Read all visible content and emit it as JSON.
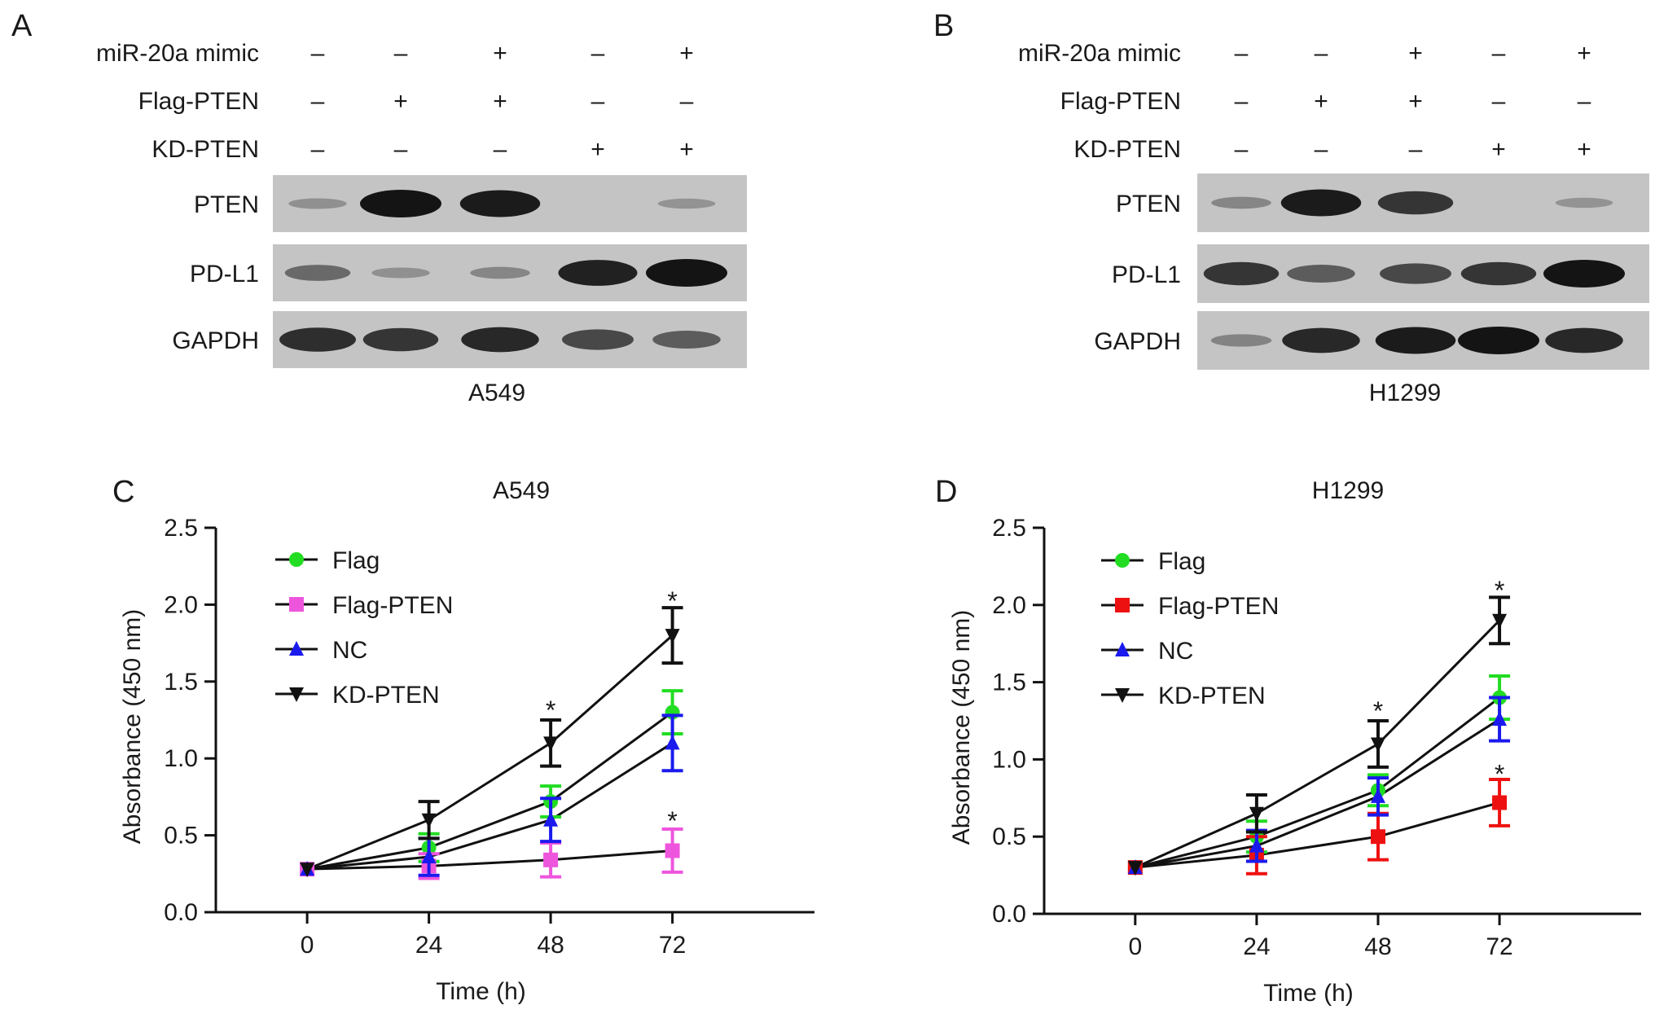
{
  "blots": [
    {
      "panel_label": "A",
      "cell_line": "A549",
      "conditions": [
        {
          "label": "miR-20a mimic",
          "lanes": [
            "–",
            "–",
            "+",
            "–",
            "+"
          ]
        },
        {
          "label": "Flag-PTEN",
          "lanes": [
            "–",
            "+",
            "+",
            "–",
            "–"
          ]
        },
        {
          "label": "KD-PTEN",
          "lanes": [
            "–",
            "–",
            "–",
            "+",
            "+"
          ]
        }
      ],
      "bands": [
        {
          "label": "PTEN",
          "intensity": [
            0.05,
            1.0,
            0.95,
            0.0,
            0.02
          ]
        },
        {
          "label": "PD-L1",
          "intensity": [
            0.35,
            0.05,
            0.12,
            0.9,
            1.0
          ]
        },
        {
          "label": "GAPDH",
          "intensity": [
            0.8,
            0.75,
            0.85,
            0.6,
            0.45
          ]
        }
      ]
    },
    {
      "panel_label": "B",
      "cell_line": "H1299",
      "conditions": [
        {
          "label": "miR-20a mimic",
          "lanes": [
            "–",
            "–",
            "+",
            "–",
            "+"
          ]
        },
        {
          "label": "Flag-PTEN",
          "lanes": [
            "–",
            "+",
            "+",
            "–",
            "–"
          ]
        },
        {
          "label": "KD-PTEN",
          "lanes": [
            "–",
            "–",
            "–",
            "+",
            "+"
          ]
        }
      ],
      "bands": [
        {
          "label": "PTEN",
          "intensity": [
            0.12,
            0.95,
            0.75,
            0.0,
            0.02
          ]
        },
        {
          "label": "PD-L1",
          "intensity": [
            0.75,
            0.45,
            0.6,
            0.75,
            1.0
          ]
        },
        {
          "label": "GAPDH",
          "intensity": [
            0.15,
            0.85,
            0.95,
            1.0,
            0.85
          ]
        }
      ]
    }
  ],
  "chart_data": [
    {
      "panel_label": "C",
      "type": "line",
      "title": "A549",
      "xlabel": "Time (h)",
      "ylabel": "Absorbance (450 nm)",
      "x": [
        0,
        24,
        48,
        72
      ],
      "x_ticks": [
        "0",
        "24",
        "48",
        "72"
      ],
      "ylim": [
        0,
        2.5
      ],
      "y_ticks": [
        "0.0",
        "0.5",
        "1.0",
        "1.5",
        "2.0",
        "2.5"
      ],
      "grid": false,
      "legend_position": "top-left",
      "significance": [
        {
          "x": 48,
          "y": 1.33,
          "text": "*"
        },
        {
          "x": 72,
          "y": 2.04,
          "text": "*"
        },
        {
          "x": 72,
          "y": 0.61,
          "text": "*"
        }
      ],
      "series": [
        {
          "name": "Flag",
          "color": "#22dd22",
          "marker": "circle",
          "values": [
            0.28,
            0.42,
            0.72,
            1.3
          ],
          "errors": [
            0,
            0.09,
            0.1,
            0.14
          ]
        },
        {
          "name": "Flag-PTEN",
          "color": "#ee55dd",
          "marker": "square",
          "values": [
            0.28,
            0.3,
            0.34,
            0.4
          ],
          "errors": [
            0,
            0.08,
            0.11,
            0.14
          ]
        },
        {
          "name": "NC",
          "color": "#1a1aee",
          "marker": "triangle-up",
          "values": [
            0.28,
            0.36,
            0.6,
            1.1
          ],
          "errors": [
            0,
            0.12,
            0.14,
            0.18
          ]
        },
        {
          "name": "KD-PTEN",
          "color": "#111111",
          "marker": "triangle-down",
          "values": [
            0.28,
            0.6,
            1.1,
            1.8
          ],
          "errors": [
            0,
            0.12,
            0.15,
            0.18
          ]
        }
      ]
    },
    {
      "panel_label": "D",
      "type": "line",
      "title": "H1299",
      "xlabel": "Time (h)",
      "ylabel": "Absorbance (450 nm)",
      "x": [
        0,
        24,
        48,
        72
      ],
      "x_ticks": [
        "0",
        "24",
        "48",
        "72"
      ],
      "ylim": [
        0,
        2.5
      ],
      "y_ticks": [
        "0.0",
        "0.5",
        "1.0",
        "1.5",
        "2.0",
        "2.5"
      ],
      "grid": false,
      "legend_position": "top-left",
      "significance": [
        {
          "x": 48,
          "y": 1.33,
          "text": "*"
        },
        {
          "x": 72,
          "y": 2.11,
          "text": "*"
        },
        {
          "x": 72,
          "y": 0.92,
          "text": "*"
        }
      ],
      "series": [
        {
          "name": "Flag",
          "color": "#22dd22",
          "marker": "circle",
          "values": [
            0.3,
            0.5,
            0.8,
            1.4
          ],
          "errors": [
            0,
            0.1,
            0.1,
            0.14
          ]
        },
        {
          "name": "Flag-PTEN",
          "color": "#ee1111",
          "marker": "square",
          "values": [
            0.3,
            0.38,
            0.5,
            0.72
          ],
          "errors": [
            0,
            0.12,
            0.15,
            0.15
          ]
        },
        {
          "name": "NC",
          "color": "#1a1aee",
          "marker": "triangle-up",
          "values": [
            0.3,
            0.44,
            0.76,
            1.26
          ],
          "errors": [
            0,
            0.1,
            0.12,
            0.14
          ]
        },
        {
          "name": "KD-PTEN",
          "color": "#111111",
          "marker": "triangle-down",
          "values": [
            0.3,
            0.65,
            1.1,
            1.9
          ],
          "errors": [
            0,
            0.12,
            0.15,
            0.15
          ]
        }
      ]
    }
  ]
}
